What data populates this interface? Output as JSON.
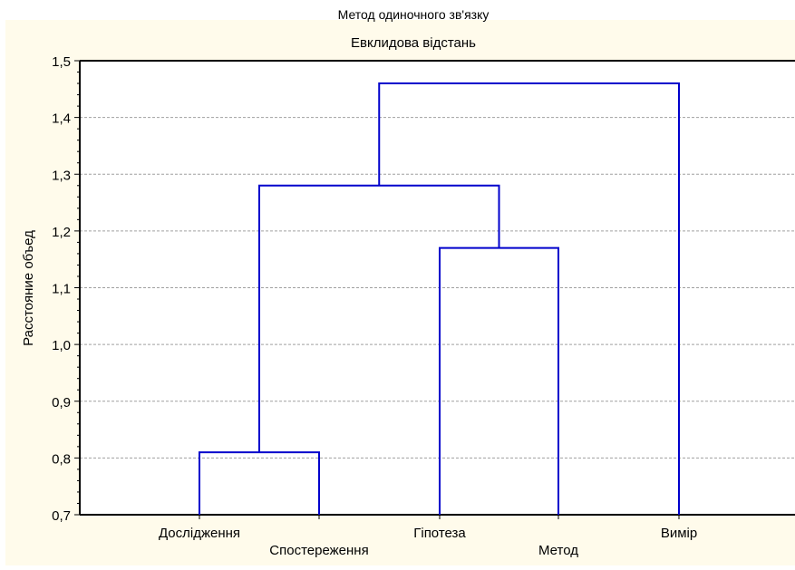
{
  "chart_data": {
    "type": "dendrogram",
    "title": "Метод одиночного зв'язку",
    "subtitle": "Евклидова відстань",
    "ylabel": "Расстояние объед",
    "ylim": [
      0.7,
      1.5
    ],
    "yticks": [
      "0,7",
      "0,8",
      "0,9",
      "1,0",
      "1,1",
      "1,2",
      "1,3",
      "1,4",
      "1,5"
    ],
    "ytick_values": [
      0.7,
      0.8,
      0.9,
      1.0,
      1.1,
      1.2,
      1.3,
      1.4,
      1.5
    ],
    "grid": true,
    "leaves": [
      "Дослідження",
      "Спостереження",
      "Гіпотеза",
      "Метод",
      "Вимір"
    ],
    "merges": [
      {
        "left": "Дослідження",
        "right": "Спостереження",
        "height": 0.81
      },
      {
        "left": "Гіпотеза",
        "right": "Метод",
        "height": 1.17
      },
      {
        "left": "Дослідження + Спостереження",
        "right": "Гіпотеза + Метод",
        "height": 1.28
      },
      {
        "left": "Дослідження + Спостереження + Гіпотеза + Метод",
        "right": "Вимір",
        "height": 1.46
      }
    ],
    "colors": {
      "background": "#fffbeb",
      "plot": "#ffffff",
      "line": "#0000cc",
      "grid": "#a0a0a0"
    }
  }
}
